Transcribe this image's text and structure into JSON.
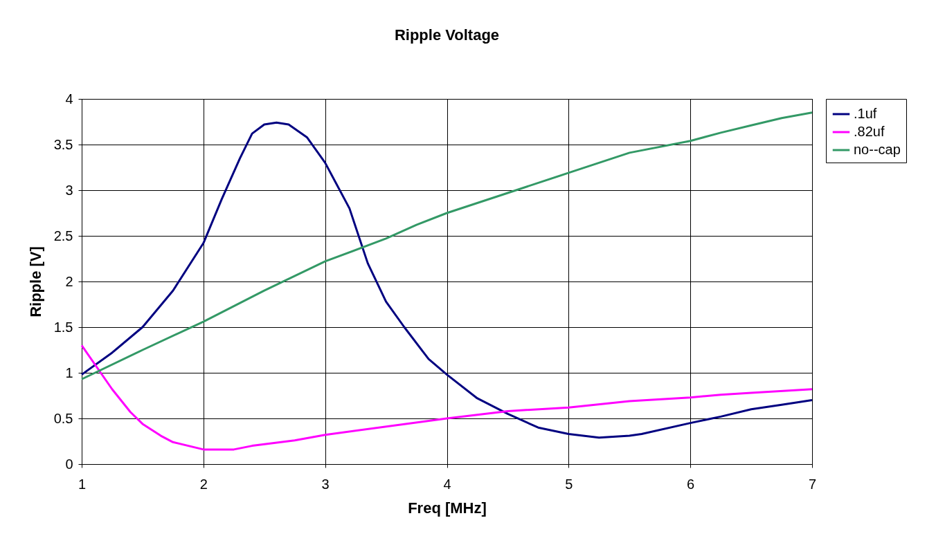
{
  "chart_data": {
    "type": "line",
    "title": "Ripple Voltage",
    "xlabel": "Freq [MHz]",
    "ylabel": "Ripple [V]",
    "xlim": [
      1,
      7
    ],
    "xticks": [
      1,
      2,
      3,
      4,
      5,
      6,
      7
    ],
    "ylim": [
      0,
      4
    ],
    "yticks": [
      0,
      0.5,
      1,
      1.5,
      2,
      2.5,
      3,
      3.5,
      4
    ],
    "grid": true,
    "legend": "right",
    "marker": "none",
    "line_style": "solid",
    "series": [
      {
        "name": ".1uf",
        "color": "#000080",
        "x": [
          1,
          1.25,
          1.5,
          1.75,
          2,
          2.15,
          2.3,
          2.4,
          2.5,
          2.6,
          2.7,
          2.85,
          3,
          3.2,
          3.35,
          3.5,
          3.65,
          3.85,
          4,
          4.25,
          4.5,
          4.75,
          5,
          5.25,
          5.5,
          5.6,
          6,
          6.25,
          6.5,
          6.75,
          7
        ],
        "values": [
          0.98,
          1.22,
          1.5,
          1.9,
          2.42,
          2.9,
          3.35,
          3.62,
          3.72,
          3.74,
          3.72,
          3.58,
          3.3,
          2.8,
          2.2,
          1.78,
          1.5,
          1.15,
          0.98,
          0.72,
          0.55,
          0.4,
          0.33,
          0.29,
          0.31,
          0.33,
          0.45,
          0.52,
          0.6,
          0.65,
          0.7
        ]
      },
      {
        "name": ".82uf",
        "color": "#ff00ff",
        "x": [
          1,
          1.25,
          1.4,
          1.5,
          1.65,
          1.75,
          2,
          2.25,
          2.4,
          2.75,
          3,
          4,
          4.5,
          5,
          5.5,
          6,
          6.25,
          6.5,
          7
        ],
        "values": [
          1.3,
          0.82,
          0.57,
          0.44,
          0.31,
          0.24,
          0.16,
          0.16,
          0.2,
          0.26,
          0.32,
          0.5,
          0.58,
          0.62,
          0.69,
          0.73,
          0.76,
          0.78,
          0.82
        ]
      },
      {
        "name": "no--cap",
        "color": "#339966",
        "x": [
          1,
          1.5,
          2,
          2.5,
          3,
          3.5,
          3.75,
          4,
          4.5,
          5,
          5.5,
          6,
          6.25,
          6.5,
          6.75,
          7
        ],
        "values": [
          0.93,
          1.25,
          1.56,
          1.9,
          2.22,
          2.47,
          2.62,
          2.75,
          2.97,
          3.19,
          3.41,
          3.54,
          3.63,
          3.71,
          3.79,
          3.85
        ]
      }
    ]
  }
}
